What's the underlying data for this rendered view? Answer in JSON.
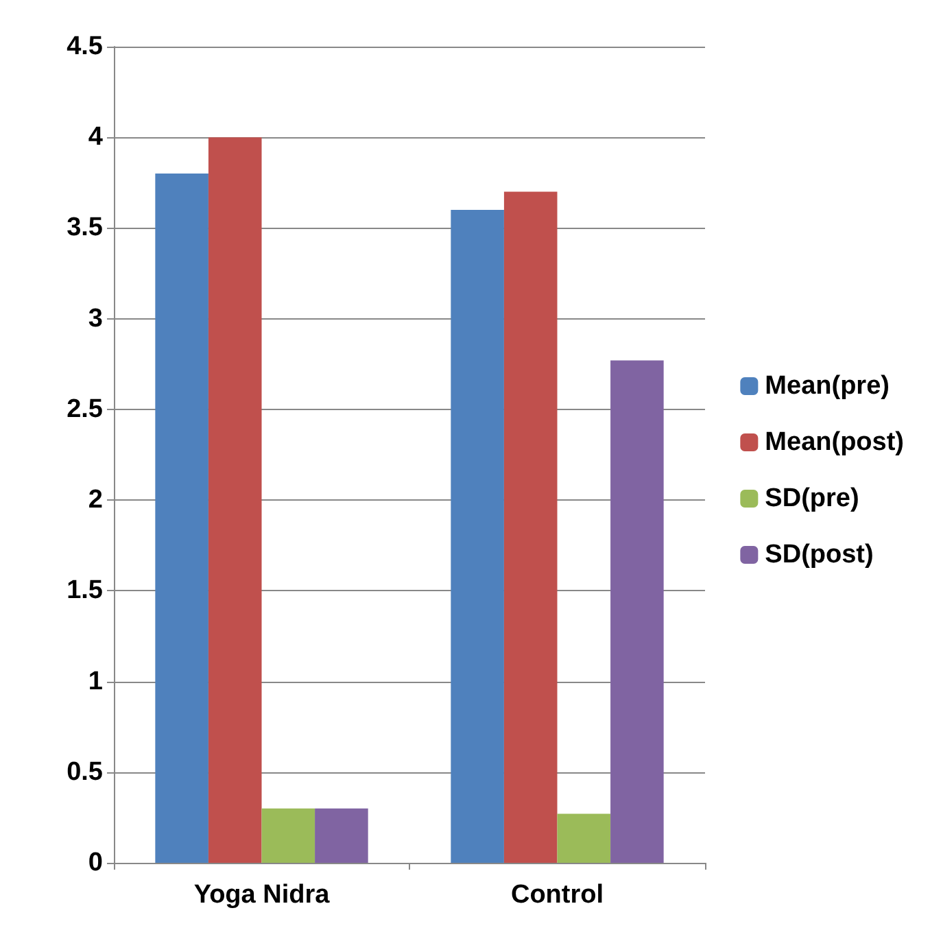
{
  "chart_data": {
    "type": "bar",
    "categories": [
      "Yoga Nidra",
      "Control"
    ],
    "series": [
      {
        "name": "Mean(pre)",
        "color": "#4f81bd",
        "values": [
          3.8,
          3.6
        ]
      },
      {
        "name": "Mean(post)",
        "color": "#c0504d",
        "values": [
          4.0,
          3.7
        ]
      },
      {
        "name": "SD(pre)",
        "color": "#9bbb59",
        "values": [
          0.3,
          0.27
        ]
      },
      {
        "name": "SD(post)",
        "color": "#8064a2",
        "values": [
          0.3,
          2.77
        ]
      }
    ],
    "ylim": [
      0,
      4.5
    ],
    "yticks": [
      0,
      0.5,
      1,
      1.5,
      2,
      2.5,
      3,
      3.5,
      4,
      4.5
    ],
    "grid": "y",
    "legend": "right"
  }
}
